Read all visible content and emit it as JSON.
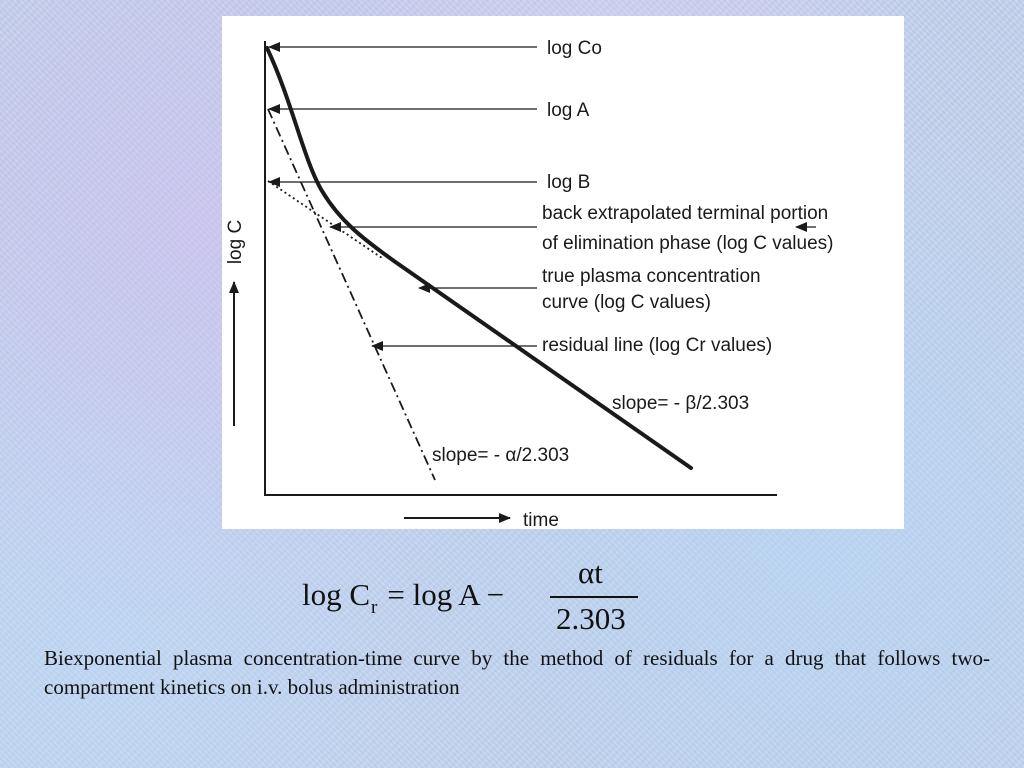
{
  "diagram": {
    "ylabel": "log C",
    "xlabel": "time",
    "annotations": {
      "log_co": "log Co",
      "log_a": "log A",
      "log_b": "log B",
      "back_extrapolated_1": "back extrapolated terminal portion",
      "back_extrapolated_2": "of elimination phase (log C values)",
      "true_curve_1": "true plasma concentration",
      "true_curve_2": "curve (log C values)",
      "residual_line": "residual line (log Cr values)",
      "slope_beta": "slope= - β/2.303",
      "slope_alpha": "slope= - α/2.303"
    }
  },
  "formula": {
    "lhs": "log C",
    "subscript": "r",
    "rhs": "= log A −",
    "numerator": "αt",
    "denominator": "2.303"
  },
  "caption": "Biexponential plasma concentration-time curve by the method of residuals for a drug that follows two-compartment kinetics on i.v. bolus administration"
}
